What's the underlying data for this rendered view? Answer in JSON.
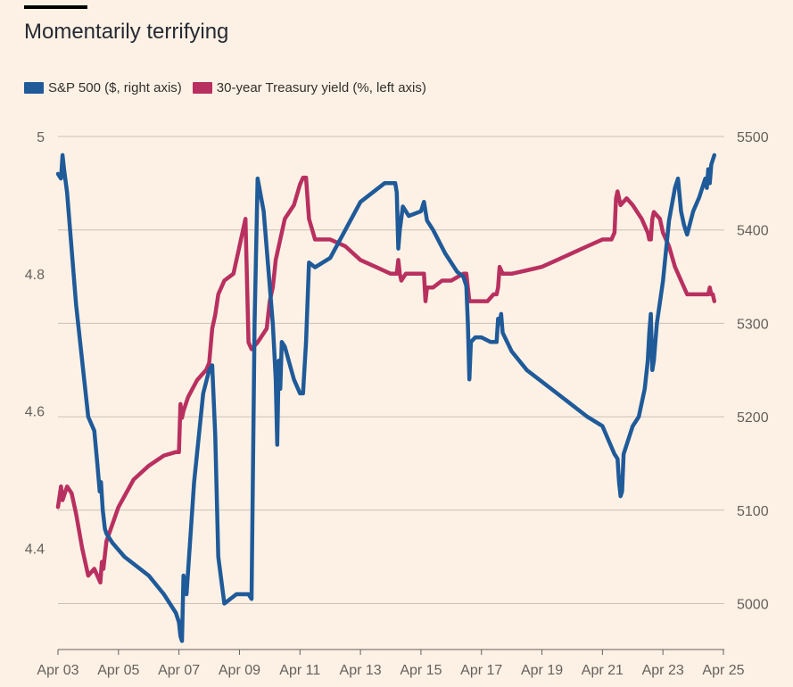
{
  "chart_data": {
    "type": "line",
    "title": "Momentarily terrifying",
    "x_ticks": [
      "Apr 03",
      "Apr 05",
      "Apr 07",
      "Apr 09",
      "Apr 11",
      "Apr 13",
      "Apr 15",
      "Apr 17",
      "Apr 19",
      "Apr 21",
      "Apr 23",
      "Apr 25"
    ],
    "x_range": [
      3,
      25
    ],
    "y_left": {
      "ticks": [
        "5",
        "4.8",
        "4.6",
        "4.4"
      ],
      "tick_values": [
        5,
        4.8,
        4.6,
        4.4
      ],
      "range": [
        4.24,
        5.0
      ]
    },
    "y_right": {
      "ticks": [
        "5500",
        "5400",
        "5300",
        "5200",
        "5100",
        "5000"
      ],
      "tick_values": [
        5500,
        5400,
        5300,
        5200,
        5100,
        5000
      ],
      "range": [
        4955,
        5500
      ]
    },
    "series": [
      {
        "name": "S&P 500 ($, right axis)",
        "color": "#1f5a99",
        "axis": "right",
        "x": [
          3.0,
          3.1,
          3.15,
          3.2,
          3.3,
          3.6,
          4.0,
          4.2,
          4.3,
          4.38,
          4.42,
          4.48,
          4.55,
          4.6,
          4.8,
          5.2,
          6.0,
          6.5,
          6.9,
          7.0,
          7.05,
          7.1,
          7.15,
          7.25,
          7.5,
          7.8,
          8.0,
          8.1,
          8.2,
          8.3,
          8.5,
          8.9,
          9.2,
          9.3,
          9.4,
          9.5,
          9.6,
          9.8,
          10.0,
          10.1,
          10.15,
          10.2,
          10.25,
          10.3,
          10.35,
          10.4,
          10.5,
          10.8,
          11.0,
          11.1,
          11.2,
          11.3,
          11.5,
          12.0,
          13.0,
          13.8,
          14.15,
          14.2,
          14.25,
          14.3,
          14.4,
          14.5,
          14.6,
          15.0,
          15.1,
          15.2,
          15.4,
          15.8,
          16.2,
          16.4,
          16.5,
          16.55,
          16.6,
          16.65,
          16.8,
          17.0,
          17.3,
          17.5,
          17.55,
          17.6,
          17.65,
          17.7,
          18.0,
          18.5,
          19.5,
          20.5,
          21.0,
          21.2,
          21.4,
          21.5,
          21.55,
          21.6,
          21.65,
          21.7,
          22.0,
          22.2,
          22.4,
          22.5,
          22.55,
          22.6,
          22.65,
          22.7,
          22.8,
          23.0,
          23.2,
          23.4,
          23.5,
          23.6,
          23.7,
          23.8,
          24.0,
          24.2,
          24.4,
          24.45,
          24.5,
          24.55,
          24.6,
          24.7
        ],
        "values": [
          5460,
          5455,
          5480,
          5465,
          5440,
          5320,
          5200,
          5185,
          5150,
          5120,
          5130,
          5100,
          5080,
          5075,
          5065,
          5050,
          5030,
          5010,
          4990,
          4980,
          4965,
          4960,
          5030,
          5010,
          5130,
          5225,
          5250,
          5255,
          5180,
          5050,
          5000,
          5010,
          5010,
          5010,
          5005,
          5300,
          5455,
          5420,
          5340,
          5300,
          5270,
          5240,
          5170,
          5260,
          5230,
          5280,
          5275,
          5240,
          5225,
          5225,
          5280,
          5365,
          5360,
          5370,
          5430,
          5450,
          5450,
          5440,
          5380,
          5400,
          5425,
          5420,
          5415,
          5420,
          5430,
          5410,
          5400,
          5375,
          5355,
          5350,
          5340,
          5300,
          5240,
          5280,
          5285,
          5285,
          5280,
          5280,
          5305,
          5300,
          5310,
          5290,
          5270,
          5250,
          5225,
          5200,
          5190,
          5175,
          5160,
          5155,
          5130,
          5115,
          5120,
          5160,
          5190,
          5200,
          5230,
          5260,
          5290,
          5310,
          5250,
          5260,
          5300,
          5345,
          5410,
          5445,
          5455,
          5420,
          5405,
          5395,
          5420,
          5435,
          5455,
          5445,
          5465,
          5450,
          5470,
          5480
        ]
      },
      {
        "name": "30-year Treasury yield (%, left axis)",
        "color": "#b83060",
        "axis": "left",
        "x": [
          3.0,
          3.1,
          3.15,
          3.3,
          3.45,
          3.6,
          3.8,
          4.0,
          4.2,
          4.4,
          4.45,
          4.5,
          4.6,
          5.0,
          5.5,
          6.0,
          6.5,
          6.9,
          7.0,
          7.05,
          7.1,
          7.15,
          7.3,
          7.6,
          7.9,
          8.0,
          8.1,
          8.15,
          8.2,
          8.3,
          8.5,
          8.8,
          9.0,
          9.1,
          9.2,
          9.3,
          9.4,
          9.6,
          9.9,
          10.0,
          10.1,
          10.15,
          10.2,
          10.3,
          10.5,
          10.8,
          11.0,
          11.1,
          11.2,
          11.3,
          11.5,
          12.0,
          12.5,
          13.0,
          13.5,
          14.0,
          14.2,
          14.25,
          14.3,
          14.35,
          14.5,
          14.8,
          15.0,
          15.1,
          15.15,
          15.2,
          15.4,
          15.7,
          16.0,
          16.4,
          16.5,
          16.55,
          16.6,
          16.8,
          17.0,
          17.2,
          17.4,
          17.5,
          17.55,
          17.6,
          17.7,
          18.0,
          18.5,
          19.0,
          19.5,
          20.0,
          20.5,
          21.0,
          21.3,
          21.4,
          21.45,
          21.5,
          21.55,
          21.6,
          21.8,
          22.0,
          22.3,
          22.5,
          22.55,
          22.6,
          22.65,
          22.7,
          22.9,
          23.0,
          23.1,
          23.2,
          23.4,
          23.6,
          23.8,
          24.0,
          24.2,
          24.4,
          24.5,
          24.55,
          24.6,
          24.65,
          24.7
        ],
        "values": [
          4.46,
          4.49,
          4.47,
          4.49,
          4.48,
          4.45,
          4.4,
          4.36,
          4.37,
          4.35,
          4.38,
          4.37,
          4.41,
          4.46,
          4.5,
          4.52,
          4.535,
          4.54,
          4.54,
          4.61,
          4.59,
          4.6,
          4.62,
          4.645,
          4.66,
          4.67,
          4.72,
          4.73,
          4.74,
          4.77,
          4.79,
          4.8,
          4.84,
          4.86,
          4.88,
          4.7,
          4.69,
          4.7,
          4.72,
          4.76,
          4.78,
          4.8,
          4.82,
          4.84,
          4.88,
          4.9,
          4.93,
          4.94,
          4.94,
          4.88,
          4.85,
          4.85,
          4.84,
          4.82,
          4.81,
          4.8,
          4.8,
          4.82,
          4.8,
          4.79,
          4.8,
          4.8,
          4.8,
          4.8,
          4.76,
          4.78,
          4.78,
          4.79,
          4.79,
          4.8,
          4.8,
          4.78,
          4.76,
          4.76,
          4.76,
          4.76,
          4.77,
          4.77,
          4.78,
          4.81,
          4.8,
          4.8,
          4.805,
          4.81,
          4.82,
          4.83,
          4.84,
          4.85,
          4.85,
          4.86,
          4.91,
          4.92,
          4.91,
          4.9,
          4.91,
          4.9,
          4.88,
          4.86,
          4.85,
          4.85,
          4.88,
          4.89,
          4.88,
          4.86,
          4.85,
          4.84,
          4.81,
          4.79,
          4.77,
          4.77,
          4.77,
          4.77,
          4.77,
          4.78,
          4.77,
          4.77,
          4.76
        ]
      }
    ]
  }
}
